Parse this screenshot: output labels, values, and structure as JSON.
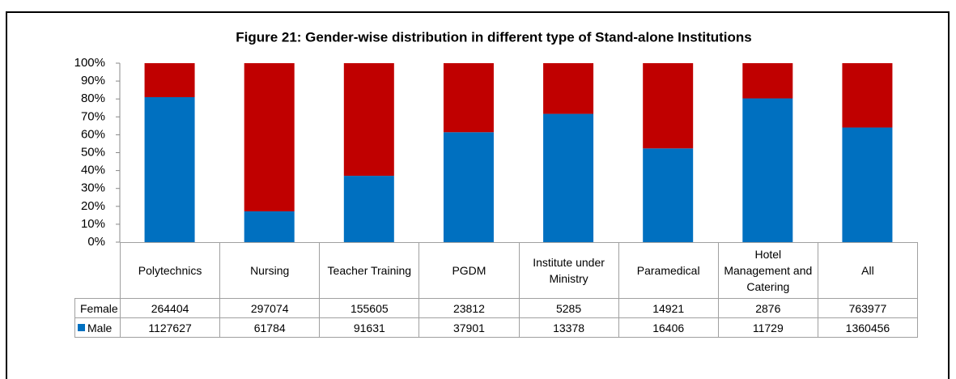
{
  "chart_data": {
    "type": "bar",
    "stacking": "percent",
    "title": "Figure 21: Gender-wise distribution in different type of Stand-alone Institutions",
    "categories": [
      "Polytechnics",
      "Nursing",
      "Teacher Training",
      "PGDM",
      "Institute under Ministry",
      "Paramedical",
      "Hotel Management and Catering",
      "All"
    ],
    "series": [
      {
        "name": "Female",
        "color": "#c00000",
        "values": [
          264404,
          297074,
          155605,
          23812,
          5285,
          14921,
          2876,
          763977
        ]
      },
      {
        "name": "Male",
        "color": "#0070c0",
        "values": [
          1127627,
          61784,
          91631,
          37901,
          13378,
          16406,
          11729,
          1360456
        ]
      }
    ],
    "ylim": [
      0,
      100
    ],
    "yticks": [
      {
        "value": 0,
        "label": "0%"
      },
      {
        "value": 10,
        "label": "10%"
      },
      {
        "value": 20,
        "label": "20%"
      },
      {
        "value": 30,
        "label": "30%"
      },
      {
        "value": 40,
        "label": "40%"
      },
      {
        "value": 50,
        "label": "50%"
      },
      {
        "value": 60,
        "label": "60%"
      },
      {
        "value": 70,
        "label": "70%"
      },
      {
        "value": 80,
        "label": "80%"
      },
      {
        "value": 90,
        "label": "90%"
      },
      {
        "value": 100,
        "label": "100%"
      }
    ],
    "data_table": true
  }
}
